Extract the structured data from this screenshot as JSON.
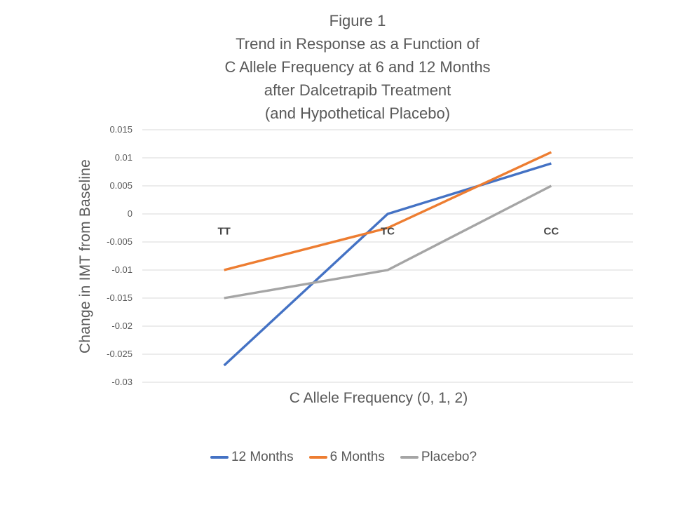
{
  "title": {
    "lines": [
      "Figure 1",
      "Trend in Response as a Function of",
      "C Allele Frequency at 6 and 12 Months",
      "after Dalcetrapib Treatment",
      "(and Hypothetical Placebo)"
    ]
  },
  "chart_data": {
    "type": "line",
    "title": "Figure 1 Trend in Response as a Function of C Allele Frequency at 6 and 12 Months after Dalcetrapib Treatment (and Hypothetical Placebo)",
    "categories": [
      "TT",
      "TC",
      "CC"
    ],
    "series": [
      {
        "name": "12 Months",
        "color": "#4472C4",
        "values": [
          -0.027,
          0,
          0.009
        ]
      },
      {
        "name": "6 Months",
        "color": "#ED7D31",
        "values": [
          -0.01,
          -0.0025,
          0.011
        ]
      },
      {
        "name": "Placebo?",
        "color": "#A5A5A5",
        "values": [
          -0.015,
          -0.01,
          0.005
        ]
      }
    ],
    "xlabel": "C Allele Frequency (0, 1, 2)",
    "ylabel": "Change in IMT from Baseline",
    "ylim": [
      -0.03,
      0.015
    ],
    "y_ticks": [
      0.015,
      0.01,
      0.005,
      0,
      -0.005,
      -0.01,
      -0.015,
      -0.02,
      -0.025,
      -0.03
    ],
    "y_tick_labels": [
      "0.015",
      "0.01",
      "0.005",
      "0",
      "-0.005",
      "-0.01",
      "-0.015",
      "-0.02",
      "-0.025",
      "-0.03"
    ],
    "grid": true,
    "legend_position": "bottom"
  },
  "colors": {
    "text": "#595959",
    "category_label": "#454545",
    "gridline": "#D9D9D9",
    "background": "#FFFFFF"
  }
}
